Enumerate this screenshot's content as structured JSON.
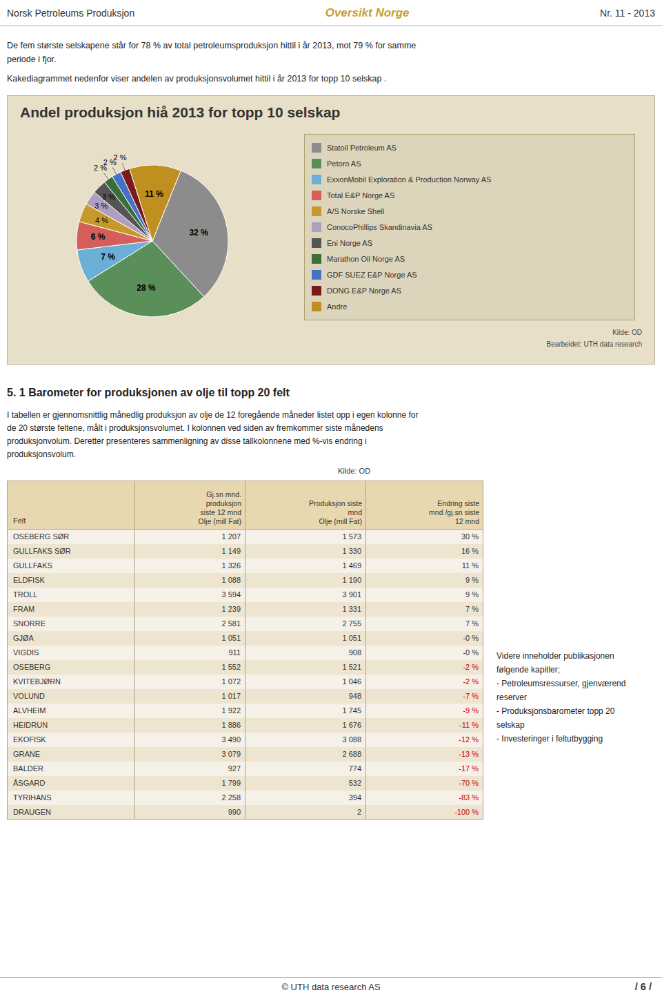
{
  "chart_data": {
    "type": "pie",
    "title": "Andel produksjon hiå 2013 for topp 10 selskap",
    "categories": [
      "Statoil Petroleum AS",
      "Petoro AS",
      "ExxonMobil Exploration & Production Norway AS",
      "Total E&P Norge AS",
      "A/S Norske Shell",
      "ConocoPhillips Skandinavia AS",
      "Eni Norge AS",
      "Marathon Oil Norge AS",
      "GDF SUEZ E&P Norge AS",
      "DONG E&P Norge AS",
      "Andre"
    ],
    "values": [
      32,
      28,
      7,
      6,
      4,
      3,
      3,
      2,
      2,
      2,
      11
    ],
    "value_labels": [
      "32 %",
      "28 %",
      "7 %",
      "6 %",
      "4 %",
      "3 %",
      "3 %",
      "2 %",
      "2 %",
      "2 %",
      "11 %"
    ],
    "colors": [
      "#8c8c8c",
      "#5a8f5a",
      "#6baed6",
      "#d45f5a",
      "#c8992a",
      "#b09ec0",
      "#555555",
      "#3a6e3a",
      "#4472c4",
      "#7b1a1a",
      "#bf9020"
    ],
    "data_labels": true,
    "legend": "right",
    "annotations": [
      "Kilde:  OD",
      "Bearbeidet: UTH data research"
    ]
  },
  "page": {
    "header_left": "Norsk Petroleums Produksjon",
    "header_center": "Oversikt Norge",
    "header_right": "Nr.  11 - 2013",
    "intro": [
      "De fem største selskapene står for 78 % av total petroleumsproduksjon hittil i år 2013, mot 79 % for samme",
      "periode i fjor.",
      "Kakediagrammet nedenfor viser andelen av produksjonsvolumet hittil i år 2013 for topp 10 selskap ."
    ],
    "chart_bg": "#e8dfc8",
    "legend_bg": "#ddd5bb",
    "section_title": "5. 1  Barometer for produksjonen av olje til topp 20 felt",
    "section_text": [
      "I tabellen er gjennomsnittlig månedlig produksjon av olje de 12 foregående måneder listet opp i egen kolonne for",
      "de 20 største feltene, målt i produksjonsvolumet. I kolonnen ved siden av fremkommer siste månedens",
      "produksjonvolum. Deretter presenteres sammenligning av disse tallkolonnene med %-vis endring i",
      "produksjonsvolum."
    ],
    "table": {
      "source": "Kilde: OD",
      "first_header": "Felt",
      "headers": [
        [
          "Gj.sn mnd.",
          "produksjon",
          "siste 12 mnd",
          "Olje (mill Fat)"
        ],
        [
          "Produksjon siste",
          "mnd",
          "Olje (mill Fat)"
        ],
        [
          "Endring siste",
          "mnd /gj.sn siste",
          "12 mnd"
        ]
      ],
      "rows": [
        [
          "OSEBERG SØR",
          "1 207",
          "1 573",
          "30 %"
        ],
        [
          "GULLFAKS SØR",
          "1 149",
          "1 330",
          "16 %"
        ],
        [
          "GULLFAKS",
          "1 326",
          "1 469",
          "11 %"
        ],
        [
          "ELDFISK",
          "1 088",
          "1 190",
          "9 %"
        ],
        [
          "TROLL",
          "3 594",
          "3 901",
          "9 %"
        ],
        [
          "FRAM",
          "1 239",
          "1 331",
          "7 %"
        ],
        [
          "SNORRE",
          "2 581",
          "2 755",
          "7 %"
        ],
        [
          "GJØA",
          "1 051",
          "1 051",
          "-0 %"
        ],
        [
          "VIGDIS",
          "911",
          "908",
          "-0 %"
        ],
        [
          "OSEBERG",
          "1 552",
          "1 521",
          "-2 %"
        ],
        [
          "KVITEBJØRN",
          "1 072",
          "1 046",
          "-2 %"
        ],
        [
          "VOLUND",
          "1 017",
          "948",
          "-7 %"
        ],
        [
          "ALVHEIM",
          "1 922",
          "1 745",
          "-9 %"
        ],
        [
          "HEIDRUN",
          "1 886",
          "1 676",
          "-11 %"
        ],
        [
          "EKOFISK",
          "3 490",
          "3 088",
          "-12 %"
        ],
        [
          "GRANE",
          "3 079",
          "2 688",
          "-13 %"
        ],
        [
          "BALDER",
          "927",
          "774",
          "-17 %"
        ],
        [
          "ÅSGARD",
          "1 799",
          "532",
          "-70 %"
        ],
        [
          "TYRIHANS",
          "2 258",
          "394",
          "-83 %"
        ],
        [
          "DRAUGEN",
          "990",
          "2",
          "-100 %"
        ]
      ],
      "positive_color": "#333333",
      "negative_color": "#cc0000",
      "header_bg": "#e8d8b0",
      "row_bg": "#f5f0e8",
      "alt_bg": "#ede5d0"
    },
    "side_lines": [
      "Videre inneholder publikasjonen",
      "følgende kapitler;",
      "- Petroleumsressurser, gjenværend",
      "reserver",
      "- Produksjonsbarometer topp 20",
      "selskap",
      "- Investeringer i feltutbygging"
    ],
    "footer_text": "© UTH data research AS",
    "footer_right": "/ 6 /"
  }
}
